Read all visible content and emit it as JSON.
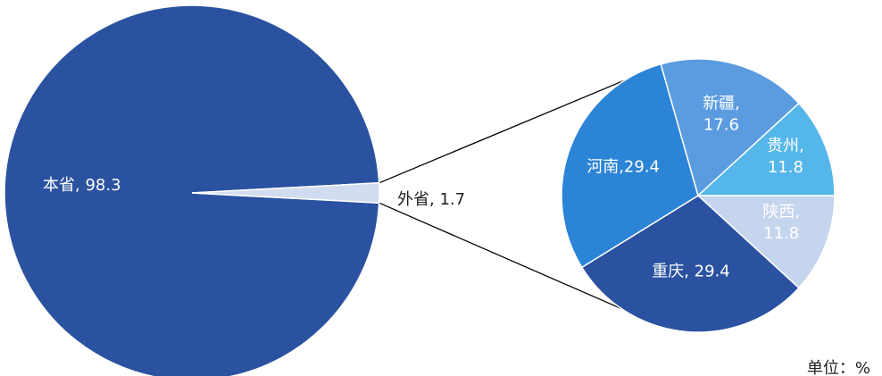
{
  "chart_data": [
    {
      "type": "pie",
      "slices": [
        {
          "label": "本省",
          "value": 98.3,
          "text": "本省, 98.3",
          "color": "#2a52a0"
        },
        {
          "label": "外省",
          "value": 1.7,
          "text": "外省, 1.7",
          "color": "#d2dcf0"
        }
      ]
    },
    {
      "type": "pie",
      "slices": [
        {
          "label": "陕西",
          "value": 11.8,
          "text": [
            "陕西,",
            "11.8"
          ],
          "color": "#c6d5ee"
        },
        {
          "label": "重庆",
          "value": 29.4,
          "text": [
            "重庆, 29.4"
          ],
          "color": "#2a52a0"
        },
        {
          "label": "河南",
          "value": 29.4,
          "text": [
            "河南,29.4"
          ],
          "color": "#2b84d6"
        },
        {
          "label": "新疆",
          "value": 17.6,
          "text": [
            "新疆,",
            "17.6"
          ],
          "color": "#5b9ce0"
        },
        {
          "label": "贵州",
          "value": 11.8,
          "text": [
            "贵州,",
            "11.8"
          ],
          "color": "#55b6ea"
        }
      ]
    }
  ],
  "unit_label": "单位：%"
}
